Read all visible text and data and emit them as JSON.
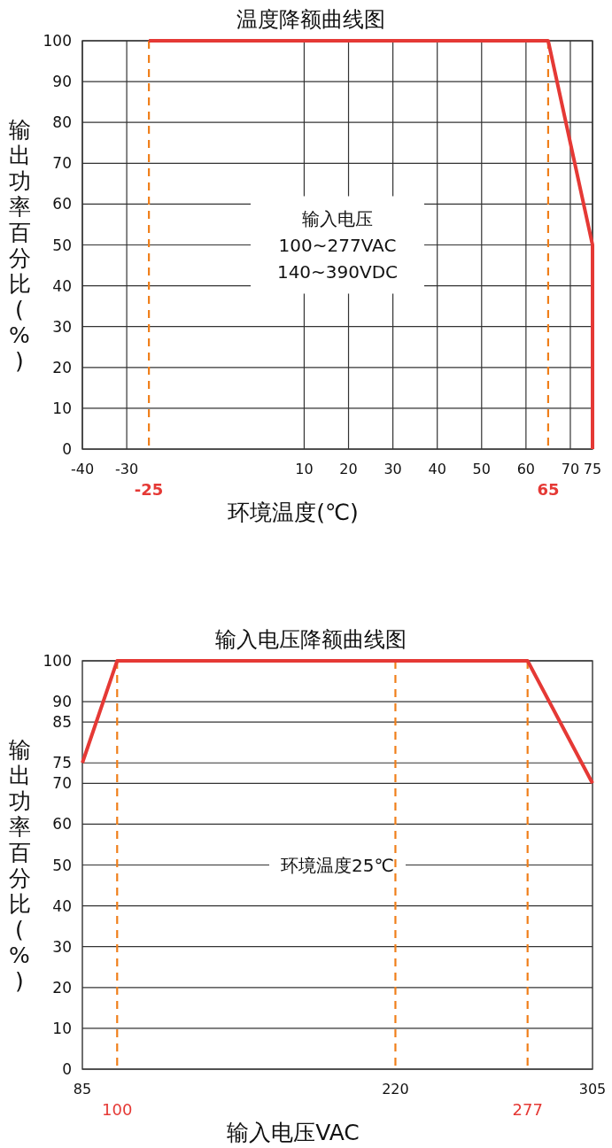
{
  "chart_data": [
    {
      "type": "line",
      "title": "温度降额曲线图",
      "xlabel": "环境温度(℃)",
      "ylabel": "输出功率百分比(%)",
      "x": [
        -25,
        65,
        75,
        75
      ],
      "values": [
        100,
        100,
        50,
        0
      ],
      "color": "#e53935",
      "xlim": [
        -40,
        75
      ],
      "ylim": [
        0,
        100
      ],
      "xticks": [
        -40,
        -30,
        10,
        20,
        30,
        40,
        50,
        60,
        70,
        75
      ],
      "yticks": [
        0,
        10,
        20,
        30,
        40,
        50,
        60,
        70,
        80,
        90,
        100
      ],
      "grid": true,
      "ref_lines": [
        {
          "axis": "x",
          "value": -25,
          "label": "**-25**",
          "color": "#f07f1a",
          "line_style": "dashed"
        },
        {
          "axis": "x",
          "value": 65,
          "label": "**65**",
          "color": "#f07f1a",
          "line_style": "dashed"
        }
      ],
      "annotations": [
        "输入电压",
        "100~277VAC",
        "140~390VDC"
      ]
    },
    {
      "type": "line",
      "title": "输入电压降额曲线图",
      "xlabel": "输入电压VAC",
      "ylabel": "输出功率百分比(%)",
      "x": [
        85,
        100,
        277,
        305
      ],
      "values": [
        75,
        100,
        100,
        70
      ],
      "color": "#e53935",
      "xlim": [
        85,
        305
      ],
      "ylim": [
        0,
        100
      ],
      "xticks": [
        85,
        220,
        305
      ],
      "yticks": [
        0,
        10,
        20,
        30,
        40,
        50,
        60,
        70,
        75,
        85,
        90,
        100
      ],
      "grid": "y",
      "ref_lines": [
        {
          "axis": "x",
          "value": 100,
          "label": "100",
          "color": "#f07f1a",
          "line_style": "dashed"
        },
        {
          "axis": "x",
          "value": 220,
          "color": "#f07f1a",
          "line_style": "dashed"
        },
        {
          "axis": "x",
          "value": 277,
          "label": "277",
          "color": "#f07f1a",
          "line_style": "dashed"
        }
      ],
      "annotations": [
        "环境温度25℃"
      ]
    }
  ]
}
